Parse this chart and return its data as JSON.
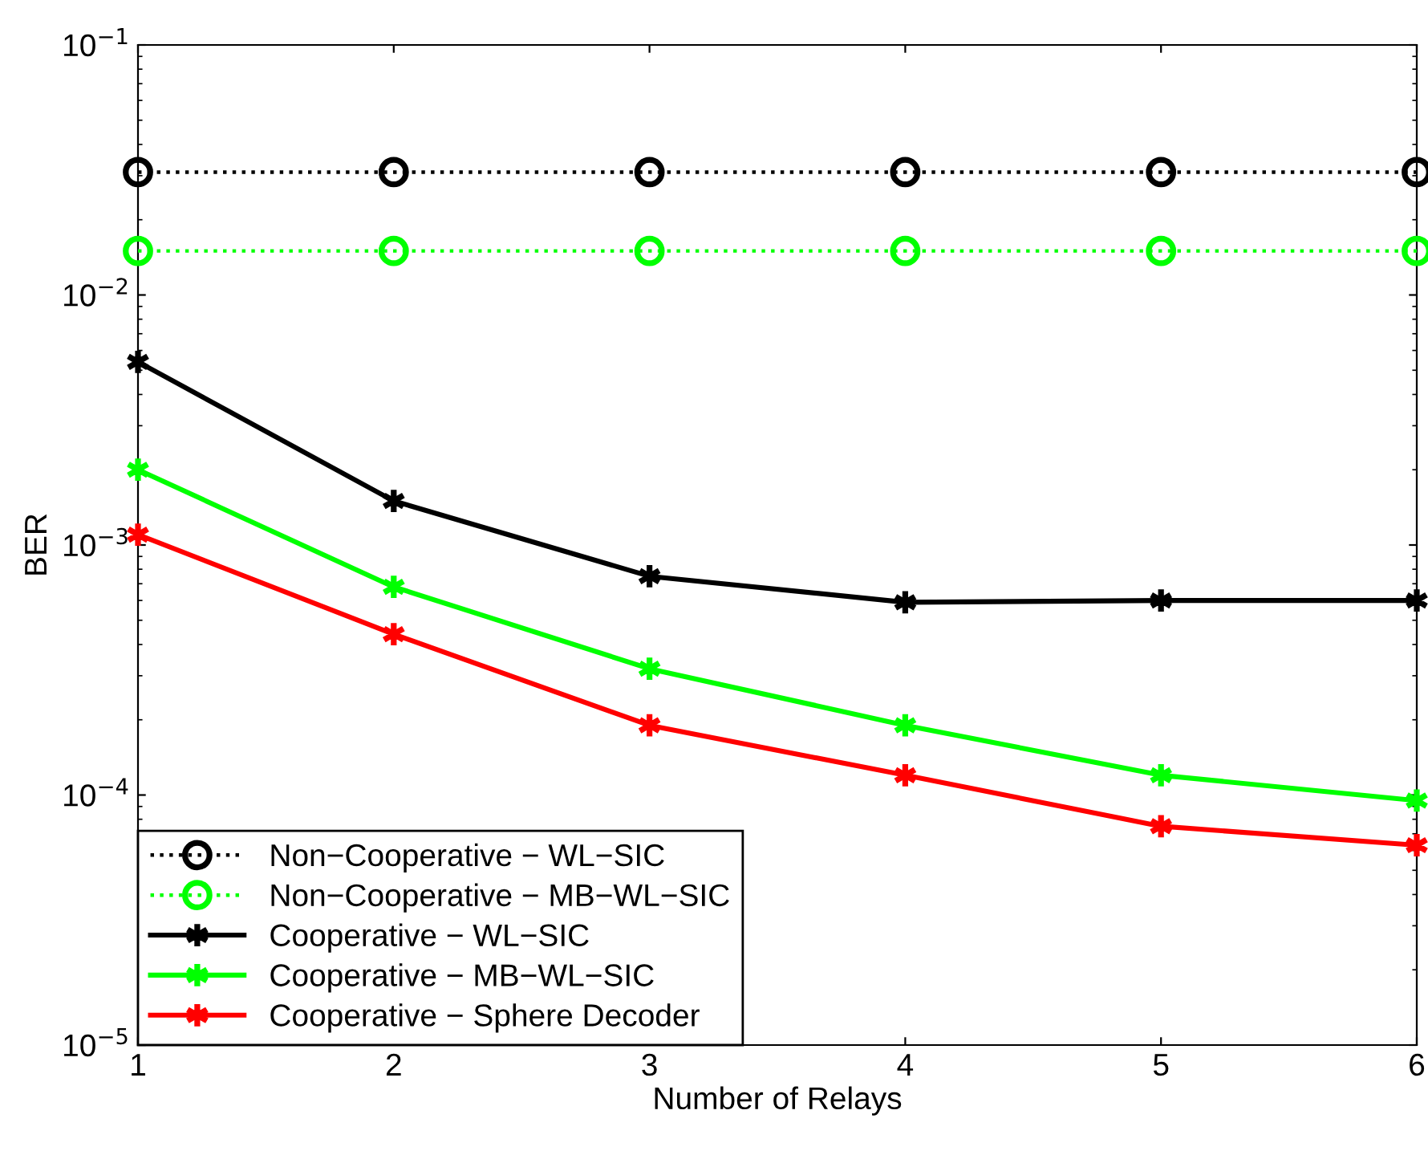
{
  "chart_data": {
    "type": "line",
    "xlabel": "Number of Relays",
    "ylabel": "BER",
    "x": [
      1,
      2,
      3,
      4,
      5,
      6
    ],
    "log": "y",
    "xlim": [
      1,
      6
    ],
    "xticks": [
      1,
      2,
      3,
      4,
      5,
      6
    ],
    "ylim": [
      1e-05,
      0.1
    ],
    "yticks": [
      {
        "value": 1e-05,
        "label": "10$^{−5}$"
      },
      {
        "value": 0.0001,
        "label": "10$^{−4}$"
      },
      {
        "value": 0.001,
        "label": "10$^{−3}$"
      },
      {
        "value": 0.01,
        "label": "10$^{−2}$"
      },
      {
        "value": 0.1,
        "label": "10$^{−1}$"
      }
    ],
    "grid": false,
    "legend": "bottom left",
    "series": [
      {
        "name": "Non−Cooperative − WL−SIC",
        "color": "#000000",
        "marker": "circle",
        "line_style": "dotted",
        "values": [
          0.031,
          0.031,
          0.031,
          0.031,
          0.031,
          0.031
        ]
      },
      {
        "name": "Non−Cooperative − MB−WL−SIC",
        "color": "#00ff00",
        "marker": "circle",
        "line_style": "dotted",
        "values": [
          0.015,
          0.015,
          0.015,
          0.015,
          0.015,
          0.015
        ]
      },
      {
        "name": "Cooperative − WL−SIC",
        "color": "#000000",
        "marker": "cross",
        "line_style": "solid",
        "values": [
          0.0054,
          0.0015,
          0.00075,
          0.00059,
          0.0006,
          0.0006
        ]
      },
      {
        "name": "Cooperative − MB−WL−SIC",
        "color": "#00ff00",
        "marker": "cross",
        "line_style": "solid",
        "values": [
          0.002,
          0.00068,
          0.00032,
          0.00019,
          0.00012,
          9.5e-05
        ]
      },
      {
        "name": "Cooperative − Sphere Decoder",
        "color": "#ff0000",
        "marker": "cross",
        "line_style": "solid",
        "values": [
          0.0011,
          0.00044,
          0.00019,
          0.00012,
          7.5e-05,
          6.3e-05
        ]
      }
    ]
  }
}
